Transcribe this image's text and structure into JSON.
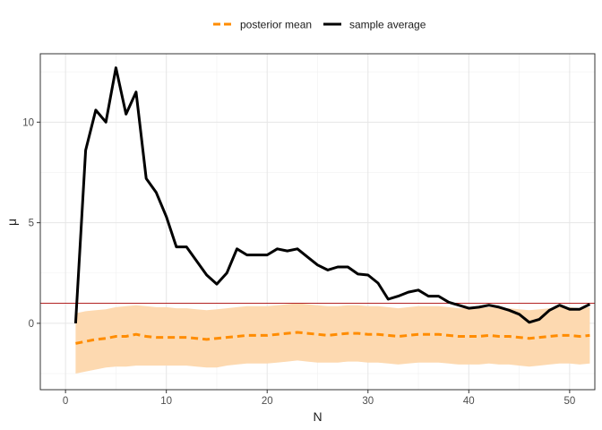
{
  "chart_data": {
    "type": "line",
    "xlabel": "N",
    "ylabel": "μ",
    "xlim": [
      -2.5,
      52.5
    ],
    "ylim": [
      -3.3,
      13.4
    ],
    "x_ticks": [
      0,
      10,
      20,
      30,
      40,
      50
    ],
    "y_ticks": [
      0,
      5,
      10
    ],
    "grid": true,
    "legend_position": "top",
    "reference_line": {
      "y": 1.0,
      "color": "#b22222"
    },
    "x": [
      1,
      2,
      3,
      4,
      5,
      6,
      7,
      8,
      9,
      10,
      11,
      12,
      13,
      14,
      15,
      16,
      17,
      18,
      19,
      20,
      21,
      22,
      23,
      24,
      25,
      26,
      27,
      28,
      29,
      30,
      31,
      32,
      33,
      34,
      35,
      36,
      37,
      38,
      39,
      40,
      41,
      42,
      43,
      44,
      45,
      46,
      47,
      48,
      49,
      50,
      51,
      52
    ],
    "series": [
      {
        "name": "posterior mean",
        "style": "dashed",
        "color": "#ff8c00",
        "values": [
          -1.0,
          -0.9,
          -0.8,
          -0.75,
          -0.65,
          -0.65,
          -0.55,
          -0.65,
          -0.7,
          -0.7,
          -0.7,
          -0.7,
          -0.75,
          -0.8,
          -0.75,
          -0.7,
          -0.65,
          -0.6,
          -0.6,
          -0.6,
          -0.55,
          -0.5,
          -0.45,
          -0.5,
          -0.55,
          -0.6,
          -0.55,
          -0.5,
          -0.5,
          -0.55,
          -0.55,
          -0.6,
          -0.65,
          -0.6,
          -0.55,
          -0.55,
          -0.55,
          -0.6,
          -0.65,
          -0.65,
          -0.65,
          -0.6,
          -0.65,
          -0.65,
          -0.7,
          -0.75,
          -0.7,
          -0.65,
          -0.6,
          -0.6,
          -0.65,
          -0.6
        ]
      },
      {
        "name": "sample average",
        "style": "solid",
        "color": "#000000",
        "values": [
          0.0,
          8.6,
          10.6,
          10.0,
          12.7,
          10.4,
          11.5,
          7.2,
          6.5,
          5.3,
          3.8,
          3.8,
          3.1,
          2.4,
          1.95,
          2.5,
          3.7,
          3.4,
          3.4,
          3.4,
          3.7,
          3.6,
          3.7,
          3.3,
          2.9,
          2.65,
          2.8,
          2.8,
          2.45,
          2.4,
          2.0,
          1.2,
          1.35,
          1.55,
          1.65,
          1.35,
          1.35,
          1.05,
          0.9,
          0.75,
          0.8,
          0.9,
          0.8,
          0.65,
          0.45,
          0.05,
          0.2,
          0.65,
          0.9,
          0.7,
          0.7,
          0.95
        ]
      }
    ],
    "band": {
      "color": "#fdd9b0",
      "lower": [
        -2.5,
        -2.4,
        -2.3,
        -2.2,
        -2.15,
        -2.15,
        -2.1,
        -2.1,
        -2.1,
        -2.1,
        -2.1,
        -2.1,
        -2.15,
        -2.2,
        -2.2,
        -2.1,
        -2.05,
        -2.0,
        -2.0,
        -2.0,
        -1.95,
        -1.9,
        -1.85,
        -1.9,
        -1.95,
        -1.95,
        -1.95,
        -1.9,
        -1.9,
        -1.95,
        -1.95,
        -2.0,
        -2.05,
        -2.0,
        -1.95,
        -1.95,
        -1.95,
        -2.0,
        -2.05,
        -2.05,
        -2.05,
        -2.0,
        -2.05,
        -2.05,
        -2.1,
        -2.15,
        -2.1,
        -2.05,
        -2.0,
        -2.0,
        -2.05,
        -2.0
      ],
      "upper": [
        0.5,
        0.6,
        0.65,
        0.7,
        0.8,
        0.85,
        0.9,
        0.85,
        0.8,
        0.8,
        0.75,
        0.75,
        0.7,
        0.65,
        0.7,
        0.75,
        0.8,
        0.85,
        0.85,
        0.85,
        0.9,
        0.95,
        1.0,
        0.95,
        0.9,
        0.85,
        0.85,
        0.9,
        0.9,
        0.85,
        0.85,
        0.8,
        0.75,
        0.8,
        0.85,
        0.85,
        0.85,
        0.8,
        0.75,
        0.75,
        0.75,
        0.8,
        0.75,
        0.75,
        0.7,
        0.65,
        0.7,
        0.75,
        0.8,
        0.8,
        0.75,
        0.8
      ]
    }
  }
}
